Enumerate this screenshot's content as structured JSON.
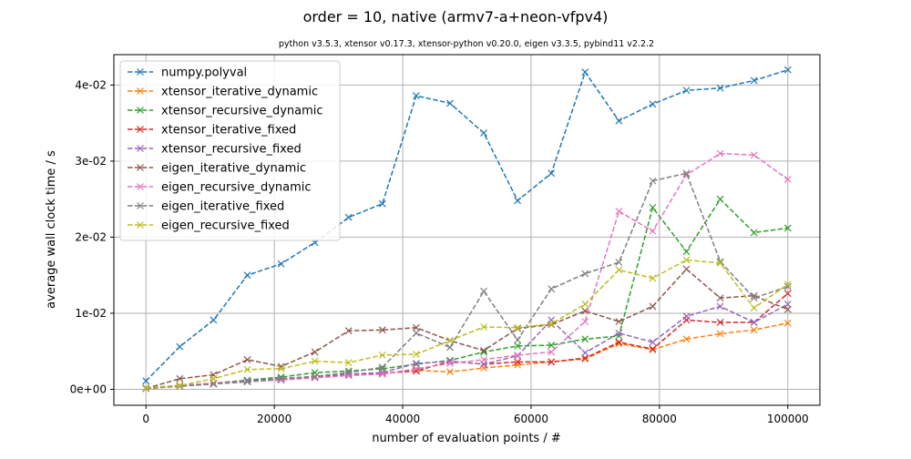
{
  "chart_data": {
    "type": "line",
    "title": "order = 10, native (armv7-a+neon-vfpv4)",
    "subtitle": "python v3.5.3, xtensor v0.17.3, xtensor-python v0.20.0, eigen v3.3.5, pybind11 v2.2.2",
    "xlabel": "number of evaluation points / #",
    "ylabel": "average wall clock time / s",
    "xlim": [
      -5000,
      105000
    ],
    "ylim": [
      -0.0021,
      0.044
    ],
    "xticks": [
      0,
      20000,
      40000,
      60000,
      80000,
      100000
    ],
    "xtick_labels": [
      "0",
      "20000",
      "40000",
      "60000",
      "80000",
      "100000"
    ],
    "yticks": [
      0,
      0.01,
      0.02,
      0.03,
      0.04
    ],
    "ytick_labels": [
      "0e+00",
      "1e-02",
      "2e-02",
      "3e-02",
      "4e-02"
    ],
    "grid": true,
    "legend_position": "top-left",
    "x": [
      0,
      5263,
      10526,
      15789,
      21053,
      26316,
      31579,
      36842,
      42105,
      47368,
      52632,
      57895,
      63158,
      68421,
      73684,
      78947,
      84211,
      89474,
      94737,
      100000
    ],
    "series": [
      {
        "name": "numpy.polyval",
        "color": "#1f77b4",
        "values": [
          0.0011,
          0.0056,
          0.0091,
          0.015,
          0.0165,
          0.0193,
          0.0226,
          0.0244,
          0.0386,
          0.0376,
          0.0337,
          0.0248,
          0.0284,
          0.0417,
          0.0353,
          0.0375,
          0.0393,
          0.0396,
          0.0406,
          0.042
        ]
      },
      {
        "name": "xtensor_iterative_dynamic",
        "color": "#ff7f0e",
        "values": [
          0.0001,
          0.0005,
          0.0008,
          0.0011,
          0.0014,
          0.0016,
          0.0019,
          0.0021,
          0.0025,
          0.0023,
          0.0028,
          0.0032,
          0.0036,
          0.004,
          0.006,
          0.0052,
          0.0066,
          0.0073,
          0.0078,
          0.0087
        ]
      },
      {
        "name": "xtensor_recursive_dynamic",
        "color": "#2ca02c",
        "values": [
          0.0002,
          0.0005,
          0.0008,
          0.0012,
          0.0016,
          0.0022,
          0.0024,
          0.0027,
          0.0033,
          0.0038,
          0.0049,
          0.0057,
          0.0058,
          0.0066,
          0.007,
          0.0239,
          0.0181,
          0.025,
          0.0206,
          0.0212
        ]
      },
      {
        "name": "xtensor_iterative_fixed",
        "color": "#d62728",
        "values": [
          0.0001,
          0.0004,
          0.0007,
          0.001,
          0.0013,
          0.0016,
          0.0019,
          0.0021,
          0.0024,
          0.0037,
          0.0033,
          0.0036,
          0.0036,
          0.0041,
          0.0062,
          0.0053,
          0.0091,
          0.0088,
          0.0088,
          0.0126
        ]
      },
      {
        "name": "xtensor_recursive_fixed",
        "color": "#9467bd",
        "values": [
          0.0001,
          0.0005,
          0.0008,
          0.0011,
          0.0014,
          0.0017,
          0.002,
          0.0022,
          0.0034,
          0.0037,
          0.0033,
          0.0044,
          0.0091,
          0.0048,
          0.0074,
          0.0062,
          0.0096,
          0.0109,
          0.0088,
          0.0112
        ]
      },
      {
        "name": "eigen_iterative_dynamic",
        "color": "#8c564b",
        "values": [
          0.0001,
          0.0014,
          0.0019,
          0.0039,
          0.003,
          0.0049,
          0.0077,
          0.0078,
          0.0081,
          0.0064,
          0.0051,
          0.008,
          0.0085,
          0.0103,
          0.0089,
          0.0109,
          0.0158,
          0.012,
          0.0123,
          0.0105
        ]
      },
      {
        "name": "eigen_recursive_dynamic",
        "color": "#e377c2",
        "values": [
          0.0001,
          0.0005,
          0.0008,
          0.001,
          0.0012,
          0.0015,
          0.0018,
          0.002,
          0.0027,
          0.0034,
          0.0039,
          0.0045,
          0.0049,
          0.0089,
          0.0234,
          0.0208,
          0.0282,
          0.031,
          0.0308,
          0.0276
        ]
      },
      {
        "name": "eigen_iterative_fixed",
        "color": "#7f7f7f",
        "values": [
          0.0001,
          0.0004,
          0.0007,
          0.001,
          0.0014,
          0.0017,
          0.0022,
          0.0029,
          0.0074,
          0.0055,
          0.0129,
          0.0065,
          0.0132,
          0.0152,
          0.0167,
          0.0274,
          0.0284,
          0.0168,
          0.012,
          0.0135
        ]
      },
      {
        "name": "eigen_recursive_fixed",
        "color": "#bcbd22",
        "values": [
          0.0002,
          0.0005,
          0.0014,
          0.0026,
          0.0027,
          0.0037,
          0.0035,
          0.0045,
          0.0046,
          0.0064,
          0.0082,
          0.0081,
          0.0086,
          0.0112,
          0.0157,
          0.0146,
          0.017,
          0.0166,
          0.0107,
          0.0138
        ]
      }
    ]
  }
}
